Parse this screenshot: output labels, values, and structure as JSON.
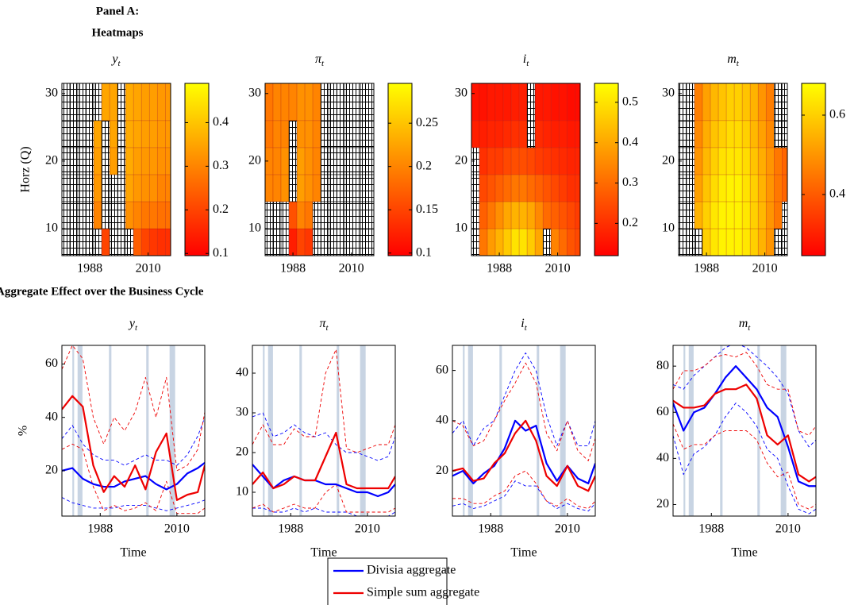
{
  "panel_a_title": [
    "Panel A:",
    "Heatmaps"
  ],
  "panel_b_title": "Aggregate Effect over the Business Cycle",
  "series_styles": [
    {
      "name": "Divisia aggregate",
      "color": "#0000ff"
    },
    {
      "name": "Simple sum aggregate",
      "color": "#ee0000"
    }
  ],
  "chart_data": [
    {
      "type": "heatmap",
      "title": "y",
      "title_sub": "t",
      "ylabel": "Horz (Q)",
      "colormap": "autumn",
      "x": [
        1979,
        1982,
        1985,
        1988,
        1991,
        1994,
        1997,
        2000,
        2003,
        2006,
        2009,
        2012,
        2015,
        2018
      ],
      "y": [
        8,
        12,
        16,
        20,
        24,
        28
      ],
      "xlim": [
        1977.5,
        2018.5
      ],
      "ylim": [
        6,
        31.5
      ],
      "xticks": [
        1988,
        2010
      ],
      "yticks": [
        10,
        20,
        30
      ],
      "zlim": [
        0.095,
        0.49
      ],
      "zticks": [
        0.1,
        0.2,
        0.3,
        0.4
      ],
      "z": [
        [
          null,
          null,
          null,
          null,
          null,
          0.2,
          null,
          null,
          null,
          0.24,
          0.2,
          0.18,
          0.17,
          0.17
        ],
        [
          null,
          null,
          null,
          null,
          0.3,
          null,
          null,
          null,
          0.32,
          0.3,
          0.28,
          0.28,
          0.27,
          0.27
        ],
        [
          null,
          null,
          null,
          null,
          0.33,
          null,
          null,
          null,
          0.35,
          0.33,
          0.32,
          0.32,
          0.3,
          0.3
        ],
        [
          null,
          null,
          null,
          null,
          0.34,
          null,
          0.34,
          null,
          0.36,
          0.34,
          0.33,
          0.33,
          0.32,
          0.32
        ],
        [
          null,
          null,
          null,
          null,
          0.35,
          null,
          0.35,
          null,
          0.36,
          0.35,
          0.34,
          0.34,
          0.33,
          0.33
        ],
        [
          null,
          null,
          null,
          null,
          null,
          0.35,
          0.35,
          null,
          0.36,
          0.35,
          0.34,
          0.34,
          0.33,
          0.33
        ]
      ]
    },
    {
      "type": "heatmap",
      "title": "π",
      "title_sub": "t",
      "colormap": "autumn",
      "x": [
        1979,
        1982,
        1985,
        1988,
        1991,
        1994,
        1997,
        2000,
        2003,
        2006,
        2009,
        2012,
        2015,
        2018
      ],
      "y": [
        8,
        12,
        16,
        20,
        24,
        28
      ],
      "xlim": [
        1977.5,
        2018.5
      ],
      "ylim": [
        6,
        31.5
      ],
      "xticks": [
        1988,
        2010
      ],
      "yticks": [
        10,
        20,
        30
      ],
      "zlim": [
        0.097,
        0.296
      ],
      "zticks": [
        0.1,
        0.15,
        0.2,
        0.25
      ],
      "z": [
        [
          null,
          null,
          null,
          0.12,
          0.15,
          0.14,
          null,
          null,
          null,
          null,
          null,
          null,
          null,
          null
        ],
        [
          null,
          null,
          null,
          0.16,
          0.2,
          0.19,
          null,
          null,
          null,
          null,
          null,
          null,
          null,
          null
        ],
        [
          0.2,
          0.2,
          0.21,
          null,
          0.22,
          0.21,
          0.2,
          null,
          null,
          null,
          null,
          null,
          null,
          null
        ],
        [
          0.2,
          0.2,
          0.21,
          null,
          0.22,
          0.21,
          0.2,
          null,
          null,
          null,
          null,
          null,
          null,
          null
        ],
        [
          0.19,
          0.2,
          0.2,
          null,
          0.21,
          0.21,
          0.2,
          null,
          null,
          null,
          null,
          null,
          null,
          null
        ],
        [
          0.19,
          0.2,
          0.2,
          0.2,
          0.21,
          0.21,
          0.2,
          null,
          null,
          null,
          null,
          null,
          null,
          null
        ]
      ]
    },
    {
      "type": "heatmap",
      "title": "i",
      "title_sub": "t",
      "colormap": "autumn",
      "x": [
        1979,
        1982,
        1985,
        1988,
        1991,
        1994,
        1997,
        2000,
        2003,
        2006,
        2009,
        2012,
        2015,
        2018
      ],
      "y": [
        8,
        12,
        16,
        20,
        24,
        28
      ],
      "xlim": [
        1977.5,
        2018.5
      ],
      "ylim": [
        6,
        31.5
      ],
      "xticks": [
        1988,
        2010
      ],
      "yticks": [
        10,
        20,
        30
      ],
      "zlim": [
        0.12,
        0.547
      ],
      "zticks": [
        0.2,
        0.3,
        0.4,
        0.5
      ],
      "z": [
        [
          null,
          0.32,
          0.38,
          0.42,
          0.46,
          0.5,
          0.5,
          0.46,
          0.4,
          null,
          0.34,
          0.3,
          0.26,
          0.24
        ],
        [
          null,
          0.28,
          0.32,
          0.36,
          0.4,
          0.42,
          0.42,
          0.4,
          0.35,
          0.3,
          0.28,
          0.26,
          0.24,
          0.22
        ],
        [
          null,
          0.24,
          0.26,
          0.28,
          0.3,
          0.32,
          0.32,
          0.3,
          0.28,
          0.26,
          0.24,
          0.22,
          0.2,
          0.2
        ],
        [
          null,
          0.2,
          0.22,
          0.22,
          0.24,
          0.25,
          0.25,
          0.24,
          0.22,
          0.21,
          0.2,
          0.19,
          0.18,
          0.18
        ],
        [
          0.17,
          0.17,
          0.18,
          0.18,
          0.19,
          0.2,
          0.2,
          null,
          0.19,
          0.18,
          0.17,
          0.17,
          0.16,
          0.16
        ],
        [
          0.15,
          0.15,
          0.16,
          0.16,
          0.16,
          0.17,
          0.17,
          null,
          0.16,
          0.16,
          0.15,
          0.15,
          0.14,
          0.14
        ]
      ]
    },
    {
      "type": "heatmap",
      "title": "m",
      "title_sub": "t",
      "colormap": "autumn",
      "x": [
        1979,
        1982,
        1985,
        1988,
        1991,
        1994,
        1997,
        2000,
        2003,
        2006,
        2009,
        2012,
        2015,
        2018
      ],
      "y": [
        8,
        12,
        16,
        20,
        24,
        28
      ],
      "xlim": [
        1977.5,
        2018.5
      ],
      "ylim": [
        6,
        31.5
      ],
      "xticks": [
        1988,
        2010
      ],
      "yticks": [
        10,
        20,
        30
      ],
      "zlim": [
        0.246,
        0.68
      ],
      "zticks": [
        0.4,
        0.6
      ],
      "z": [
        [
          null,
          null,
          null,
          0.6,
          0.64,
          0.66,
          0.66,
          0.66,
          0.64,
          0.6,
          0.55,
          0.5,
          null,
          null
        ],
        [
          null,
          null,
          0.55,
          0.6,
          0.64,
          0.66,
          0.66,
          0.66,
          0.64,
          0.6,
          0.56,
          0.5,
          0.45,
          null
        ],
        [
          null,
          null,
          0.52,
          0.58,
          0.62,
          0.65,
          0.66,
          0.66,
          0.63,
          0.6,
          0.55,
          0.5,
          0.45,
          0.42
        ],
        [
          null,
          null,
          0.5,
          0.56,
          0.6,
          0.63,
          0.64,
          0.64,
          0.62,
          0.58,
          0.54,
          0.5,
          0.45,
          0.42
        ],
        [
          null,
          null,
          0.48,
          0.54,
          0.58,
          0.6,
          0.62,
          0.62,
          0.6,
          0.56,
          0.52,
          0.48,
          null,
          null
        ],
        [
          null,
          null,
          0.46,
          0.52,
          0.56,
          0.58,
          0.6,
          0.6,
          0.58,
          0.55,
          0.5,
          0.46,
          null,
          null
        ]
      ]
    },
    {
      "type": "line",
      "title": "y",
      "title_sub": "t",
      "ylabel": "%",
      "xlabel": "Time",
      "x": [
        1977,
        1980,
        1983,
        1986,
        1989,
        1992,
        1995,
        1998,
        2001,
        2004,
        2007,
        2010,
        2013,
        2016,
        2018
      ],
      "xlim": [
        1977,
        2018
      ],
      "ylim": [
        3,
        67
      ],
      "xticks": [
        1988,
        2010
      ],
      "yticks": [
        20,
        40,
        60
      ],
      "recessions": [
        [
          1980,
          1980.5
        ],
        [
          1981.5,
          1982.9
        ],
        [
          1990.5,
          1991.2
        ],
        [
          2001.2,
          2001.9
        ],
        [
          2007.9,
          2009.5
        ]
      ],
      "series": [
        {
          "values": [
            20,
            21,
            17,
            15,
            14,
            14,
            16,
            17,
            18,
            15,
            13,
            15,
            19,
            21,
            23
          ],
          "upper": [
            32,
            37,
            30,
            26,
            24,
            24,
            22,
            24,
            26,
            24,
            24,
            22,
            26,
            33,
            40
          ],
          "lower": [
            10,
            8,
            7,
            6,
            6,
            6,
            7,
            7,
            7,
            6,
            5,
            6,
            7,
            8,
            9
          ]
        },
        {
          "values": [
            43,
            48,
            44,
            22,
            12,
            18,
            14,
            22,
            13,
            27,
            34,
            9,
            11,
            12,
            22
          ],
          "upper": [
            58,
            67,
            62,
            40,
            30,
            40,
            35,
            42,
            55,
            40,
            55,
            20,
            22,
            28,
            42
          ],
          "lower": [
            28,
            30,
            28,
            14,
            5,
            7,
            5,
            6,
            8,
            5,
            16,
            4,
            4,
            4,
            6
          ]
        }
      ]
    },
    {
      "type": "line",
      "title": "π",
      "title_sub": "t",
      "xlabel": "Time",
      "x": [
        1977,
        1980,
        1983,
        1986,
        1989,
        1992,
        1995,
        1998,
        2001,
        2004,
        2007,
        2010,
        2013,
        2016,
        2018
      ],
      "xlim": [
        1977,
        2018
      ],
      "ylim": [
        4,
        47
      ],
      "xticks": [
        1988,
        2010
      ],
      "yticks": [
        10,
        20,
        30,
        40
      ],
      "recessions": [
        [
          1980,
          1980.5
        ],
        [
          1981.5,
          1982.9
        ],
        [
          1990.5,
          1991.2
        ],
        [
          2001.2,
          2001.9
        ],
        [
          2007.9,
          2009.5
        ]
      ],
      "series": [
        {
          "values": [
            17,
            14,
            11,
            13,
            14,
            13,
            13,
            12,
            12,
            11,
            10,
            10,
            9,
            10,
            12
          ],
          "upper": [
            29,
            30,
            24,
            25,
            27,
            25,
            24,
            25,
            22,
            20,
            20,
            19,
            18,
            19,
            24
          ],
          "lower": [
            6,
            6,
            5,
            5,
            6,
            5,
            6,
            5,
            5,
            5,
            4,
            4,
            4,
            4,
            5
          ]
        },
        {
          "values": [
            12,
            15,
            11,
            12,
            14,
            13,
            13,
            19,
            25,
            12,
            11,
            11,
            11,
            11,
            14
          ],
          "upper": [
            22,
            27,
            22,
            22,
            26,
            24,
            24,
            40,
            46,
            21,
            20,
            21,
            22,
            22,
            27
          ],
          "lower": [
            6,
            7,
            5,
            6,
            7,
            6,
            6,
            10,
            12,
            5,
            5,
            5,
            5,
            5,
            6
          ]
        }
      ]
    },
    {
      "type": "line",
      "title": "i",
      "title_sub": "t",
      "xlabel": "Time",
      "x": [
        1977,
        1980,
        1983,
        1986,
        1989,
        1992,
        1995,
        1998,
        2001,
        2004,
        2007,
        2010,
        2013,
        2016,
        2018
      ],
      "xlim": [
        1977,
        2018
      ],
      "ylim": [
        2,
        70
      ],
      "xticks": [
        1988,
        2010
      ],
      "yticks": [
        20,
        40,
        60
      ],
      "recessions": [
        [
          1980,
          1980.5
        ],
        [
          1981.5,
          1982.9
        ],
        [
          1990.5,
          1991.2
        ],
        [
          2001.2,
          2001.9
        ],
        [
          2007.9,
          2009.5
        ]
      ],
      "series": [
        {
          "values": [
            18,
            20,
            15,
            19,
            22,
            29,
            40,
            36,
            38,
            23,
            16,
            22,
            17,
            15,
            23
          ],
          "upper": [
            35,
            40,
            30,
            37,
            40,
            50,
            60,
            67,
            60,
            42,
            30,
            40,
            30,
            30,
            40
          ],
          "lower": [
            6,
            7,
            5,
            6,
            8,
            10,
            16,
            14,
            14,
            8,
            5,
            7,
            5,
            4,
            7
          ]
        },
        {
          "values": [
            20,
            21,
            16,
            17,
            23,
            27,
            35,
            40,
            32,
            18,
            14,
            22,
            14,
            12,
            18
          ],
          "upper": [
            40,
            38,
            30,
            32,
            40,
            48,
            55,
            63,
            55,
            35,
            28,
            40,
            28,
            24,
            33
          ],
          "lower": [
            9,
            9,
            7,
            7,
            10,
            12,
            18,
            20,
            15,
            8,
            6,
            9,
            6,
            5,
            8
          ]
        }
      ]
    },
    {
      "type": "line",
      "title": "m",
      "title_sub": "t",
      "xlabel": "Time",
      "x": [
        1977,
        1980,
        1983,
        1986,
        1989,
        1992,
        1995,
        1998,
        2001,
        2004,
        2007,
        2010,
        2013,
        2016,
        2018
      ],
      "xlim": [
        1977,
        2018
      ],
      "ylim": [
        15,
        89
      ],
      "xticks": [
        1988,
        2010
      ],
      "yticks": [
        20,
        40,
        60,
        80
      ],
      "recessions": [
        [
          1980,
          1980.5
        ],
        [
          1981.5,
          1982.9
        ],
        [
          1990.5,
          1991.2
        ],
        [
          2001.2,
          2001.9
        ],
        [
          2007.9,
          2009.5
        ]
      ],
      "series": [
        {
          "values": [
            64,
            52,
            60,
            62,
            68,
            75,
            80,
            75,
            70,
            62,
            58,
            45,
            30,
            28,
            28
          ],
          "upper": [
            72,
            70,
            76,
            80,
            84,
            88,
            90,
            88,
            84,
            80,
            75,
            68,
            52,
            45,
            48
          ],
          "lower": [
            50,
            33,
            42,
            45,
            50,
            58,
            64,
            60,
            54,
            44,
            40,
            28,
            18,
            16,
            18
          ]
        },
        {
          "values": [
            65,
            62,
            62,
            63,
            68,
            70,
            70,
            72,
            66,
            50,
            46,
            50,
            33,
            30,
            32
          ],
          "upper": [
            70,
            78,
            78,
            80,
            84,
            85,
            84,
            86,
            80,
            72,
            70,
            70,
            52,
            50,
            54
          ],
          "lower": [
            55,
            44,
            46,
            46,
            50,
            52,
            52,
            52,
            48,
            38,
            32,
            34,
            20,
            18,
            20
          ]
        }
      ]
    }
  ]
}
